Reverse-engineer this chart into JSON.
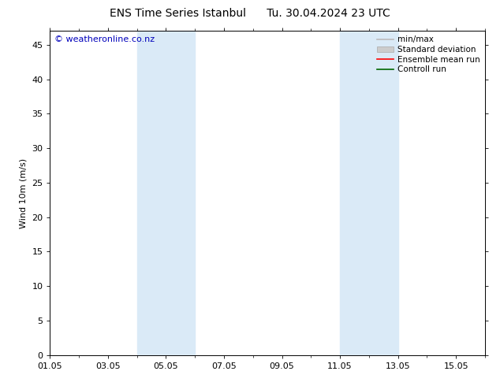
{
  "title_left": "ENS Time Series Istanbul",
  "title_right": "Tu. 30.04.2024 23 UTC",
  "ylabel": "Wind 10m (m/s)",
  "ylim": [
    0,
    47
  ],
  "yticks": [
    0,
    5,
    10,
    15,
    20,
    25,
    30,
    35,
    40,
    45
  ],
  "total_days": 15,
  "xtick_labels": [
    "01.05",
    "03.05",
    "05.05",
    "07.05",
    "09.05",
    "11.05",
    "13.05",
    "15.05"
  ],
  "xtick_positions_days": [
    0,
    2,
    4,
    6,
    8,
    10,
    12,
    14
  ],
  "shaded_bands": [
    {
      "x_start_day": 3.0,
      "x_end_day": 5.0
    },
    {
      "x_start_day": 10.0,
      "x_end_day": 12.0
    }
  ],
  "shade_color": "#daeaf7",
  "background_color": "#ffffff",
  "watermark": "© weatheronline.co.nz",
  "watermark_color": "#0000bb",
  "legend_items": [
    {
      "label": "min/max",
      "color": "#bbbbbb",
      "lw": 1.2,
      "type": "line"
    },
    {
      "label": "Standard deviation",
      "color": "#cccccc",
      "type": "fill"
    },
    {
      "label": "Ensemble mean run",
      "color": "#ff0000",
      "lw": 1.2,
      "type": "line"
    },
    {
      "label": "Controll run",
      "color": "#006600",
      "lw": 1.2,
      "type": "line"
    }
  ],
  "border_color": "#000000",
  "tick_color": "#000000",
  "font_size": 8,
  "title_font_size": 10
}
